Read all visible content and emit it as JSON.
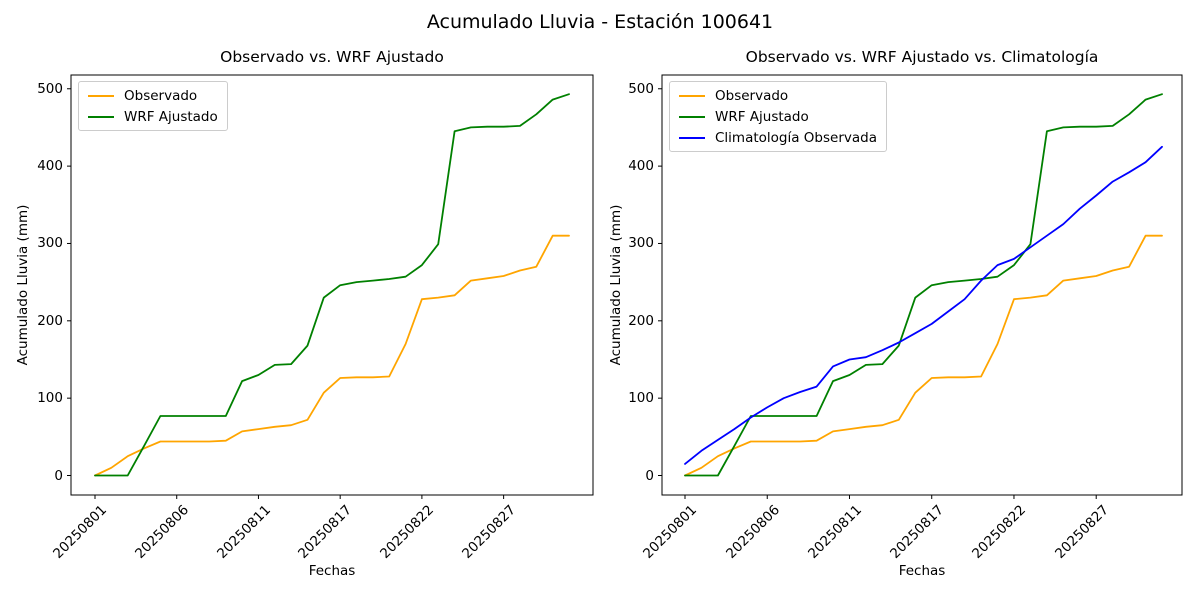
{
  "figure": {
    "title": "Acumulado Lluvia - Estación 100641"
  },
  "chart_data": [
    {
      "type": "line",
      "title": "Observado vs. WRF Ajustado",
      "xlabel": "Fechas",
      "ylabel": "Acumulado Lluvia (mm)",
      "x_dates": [
        "20250801",
        "20250802",
        "20250803",
        "20250804",
        "20250805",
        "20250806",
        "20250807",
        "20250808",
        "20250809",
        "20250810",
        "20250811",
        "20250813",
        "20250814",
        "20250815",
        "20250816",
        "20250817",
        "20250818",
        "20250819",
        "20250820",
        "20250821",
        "20250822",
        "20250823",
        "20250824",
        "20250825",
        "20250826",
        "20250827",
        "20250828",
        "20250829",
        "20250830",
        "20250831"
      ],
      "xtick_indexes": [
        0,
        5,
        10,
        15,
        20,
        25
      ],
      "xtick_labels": [
        "20250801",
        "20250806",
        "20250811",
        "20250817",
        "20250822",
        "20250827"
      ],
      "yticks": [
        0,
        100,
        200,
        300,
        400,
        500
      ],
      "ylim": [
        -25.2,
        517.8
      ],
      "grid": false,
      "legend_position": "upper left",
      "series": [
        {
          "name": "Observado",
          "color": "#ffa500",
          "values": [
            0,
            10,
            25,
            35,
            44,
            44,
            44,
            44,
            45,
            57,
            60,
            63,
            65,
            72,
            107,
            126,
            127,
            127,
            128,
            170,
            228,
            230,
            233,
            252,
            255,
            258,
            265,
            270,
            310,
            310
          ]
        },
        {
          "name": "WRF Ajustado",
          "color": "#008000",
          "values": [
            0,
            0,
            0,
            38,
            77,
            77,
            77,
            77,
            77,
            122,
            130,
            143,
            144,
            168,
            230,
            246,
            250,
            252,
            254,
            257,
            272,
            299,
            445,
            450,
            451,
            451,
            452,
            467,
            486,
            493
          ]
        }
      ]
    },
    {
      "type": "line",
      "title": "Observado vs. WRF Ajustado vs. Climatología",
      "xlabel": "Fechas",
      "ylabel": "Acumulado Lluvia (mm)",
      "x_dates": [
        "20250801",
        "20250802",
        "20250803",
        "20250804",
        "20250805",
        "20250806",
        "20250807",
        "20250808",
        "20250809",
        "20250810",
        "20250811",
        "20250813",
        "20250814",
        "20250815",
        "20250816",
        "20250817",
        "20250818",
        "20250819",
        "20250820",
        "20250821",
        "20250822",
        "20250823",
        "20250824",
        "20250825",
        "20250826",
        "20250827",
        "20250828",
        "20250829",
        "20250830",
        "20250831"
      ],
      "xtick_indexes": [
        0,
        5,
        10,
        15,
        20,
        25
      ],
      "xtick_labels": [
        "20250801",
        "20250806",
        "20250811",
        "20250817",
        "20250822",
        "20250827"
      ],
      "yticks": [
        0,
        100,
        200,
        300,
        400,
        500
      ],
      "ylim": [
        -25.2,
        517.8
      ],
      "grid": false,
      "legend_position": "upper left",
      "series": [
        {
          "name": "Observado",
          "color": "#ffa500",
          "values": [
            0,
            10,
            25,
            35,
            44,
            44,
            44,
            44,
            45,
            57,
            60,
            63,
            65,
            72,
            107,
            126,
            127,
            127,
            128,
            170,
            228,
            230,
            233,
            252,
            255,
            258,
            265,
            270,
            310,
            310
          ]
        },
        {
          "name": "WRF Ajustado",
          "color": "#008000",
          "values": [
            0,
            0,
            0,
            38,
            77,
            77,
            77,
            77,
            77,
            122,
            130,
            143,
            144,
            168,
            230,
            246,
            250,
            252,
            254,
            257,
            272,
            299,
            445,
            450,
            451,
            451,
            452,
            467,
            486,
            493
          ]
        },
        {
          "name": "Climatología Observada",
          "color": "#0000ff",
          "values": [
            15,
            32,
            46,
            60,
            75,
            88,
            100,
            108,
            115,
            141,
            150,
            153,
            162,
            172,
            184,
            196,
            212,
            228,
            252,
            272,
            280,
            295,
            310,
            325,
            345,
            362,
            380,
            392,
            405,
            425
          ]
        }
      ]
    }
  ]
}
